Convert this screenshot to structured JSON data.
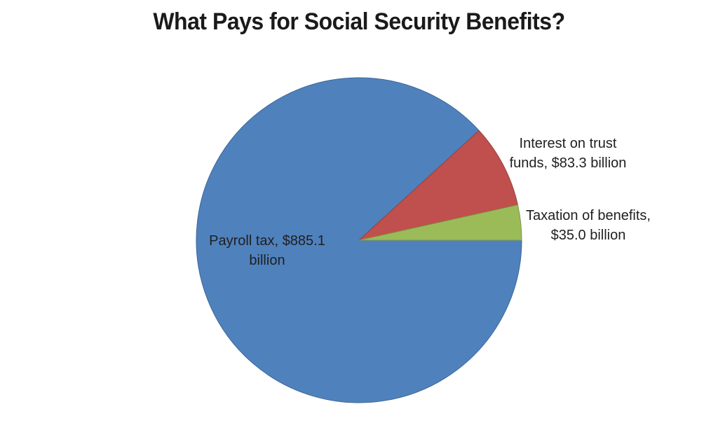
{
  "title": "What Pays for Social Security Benefits?",
  "chart_data": {
    "type": "pie",
    "title": "What Pays for Social Security Benefits?",
    "unit": "billions of dollars",
    "start_angle_deg": 90,
    "direction": "clockwise",
    "legend": "none",
    "total": 1003.4,
    "slices": [
      {
        "label": "Payroll tax",
        "value": 885.1,
        "color": "#4F81BD",
        "display": [
          "Payroll tax, $885.1",
          "billion"
        ]
      },
      {
        "label": "Interest on trust funds",
        "value": 83.3,
        "color": "#C0504D",
        "display": [
          "Interest on trust",
          "funds, $83.3 billion"
        ]
      },
      {
        "label": "Taxation of benefits",
        "value": 35.0,
        "color": "#9BBB59",
        "display": [
          "Taxation of benefits,",
          "$35.0 billion"
        ]
      }
    ]
  }
}
